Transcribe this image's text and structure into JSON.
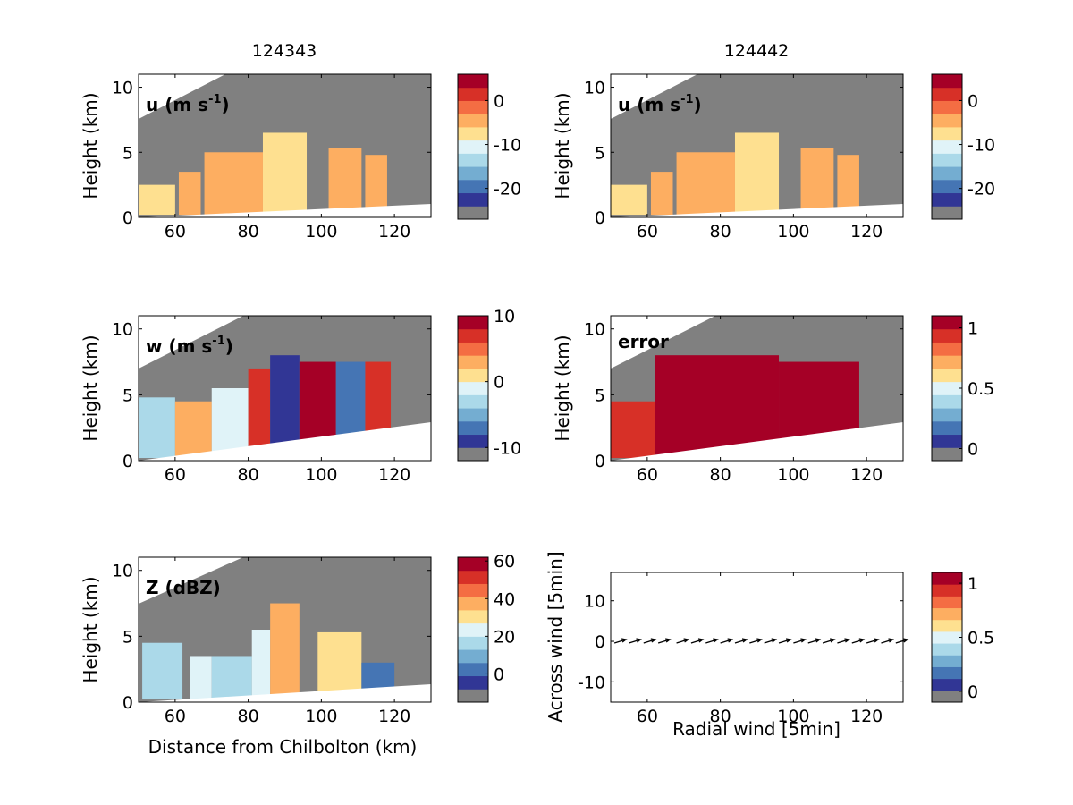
{
  "colors": {
    "mask_gray": "#808080",
    "below_ground": "#ffffff",
    "colormap": [
      "#808080",
      "#313695",
      "#4575b4",
      "#74add1",
      "#abd9e9",
      "#e0f3f8",
      "#fee090",
      "#fdae61",
      "#f46d43",
      "#d73027",
      "#a50026"
    ]
  },
  "column_titles": [
    "124343",
    "124442"
  ],
  "chart_data": [
    {
      "type": "heatmap",
      "panel": "u-left",
      "label_main": "u (m s",
      "label_sup": "-1",
      "label_close": ")",
      "ylabel": "Height (km)",
      "xlabel": "",
      "xlim": [
        50,
        130
      ],
      "ylim": [
        0,
        11
      ],
      "xticks": [
        "60",
        "80",
        "100",
        "120"
      ],
      "yticks": [
        "0",
        "5",
        "10"
      ],
      "colorbar": {
        "range": [
          -27,
          6
        ],
        "ticks": [
          "0",
          "-10",
          "-20"
        ],
        "tick_values": [
          0,
          -10,
          -20
        ]
      },
      "echo_regions": [
        {
          "x": [
            50,
            60
          ],
          "ytop": 2.5,
          "value": -8
        },
        {
          "x": [
            61,
            67
          ],
          "ytop": 3.5,
          "value": -5
        },
        {
          "x": [
            68,
            84
          ],
          "ytop": 5.0,
          "value": -4
        },
        {
          "x": [
            84,
            96
          ],
          "ytop": 6.5,
          "value": -7
        },
        {
          "x": [
            102,
            111
          ],
          "ytop": 5.3,
          "value": -6
        },
        {
          "x": [
            112,
            118
          ],
          "ytop": 4.8,
          "value": -4
        }
      ]
    },
    {
      "type": "heatmap",
      "panel": "u-right",
      "label_main": "u (m s",
      "label_sup": "-1",
      "label_close": ")",
      "ylabel": "Height (km)",
      "xlabel": "",
      "xlim": [
        50,
        130
      ],
      "ylim": [
        0,
        11
      ],
      "xticks": [
        "60",
        "80",
        "100",
        "120"
      ],
      "yticks": [
        "0",
        "5",
        "10"
      ],
      "colorbar": {
        "range": [
          -27,
          6
        ],
        "ticks": [
          "0",
          "-10",
          "-20"
        ],
        "tick_values": [
          0,
          -10,
          -20
        ]
      },
      "echo_regions": [
        {
          "x": [
            50,
            60
          ],
          "ytop": 2.5,
          "value": -8
        },
        {
          "x": [
            61,
            67
          ],
          "ytop": 3.5,
          "value": -5
        },
        {
          "x": [
            68,
            84
          ],
          "ytop": 5.0,
          "value": -4
        },
        {
          "x": [
            84,
            96
          ],
          "ytop": 6.5,
          "value": -7
        },
        {
          "x": [
            102,
            111
          ],
          "ytop": 5.3,
          "value": -6
        },
        {
          "x": [
            112,
            118
          ],
          "ytop": 4.8,
          "value": -4
        }
      ]
    },
    {
      "type": "heatmap",
      "panel": "w-left",
      "label_main": "w (m s",
      "label_sup": "-1",
      "label_close": ")",
      "ylabel": "Height (km)",
      "xlabel": "",
      "xlim": [
        50,
        130
      ],
      "ylim": [
        0,
        11
      ],
      "xticks": [
        "60",
        "80",
        "100",
        "120"
      ],
      "yticks": [
        "0",
        "5",
        "10"
      ],
      "colorbar": {
        "range": [
          -12,
          10
        ],
        "ticks": [
          "10",
          "0",
          "-10"
        ],
        "tick_values": [
          10,
          0,
          -10
        ]
      },
      "echo_regions": [
        {
          "x": [
            50,
            60
          ],
          "ytop": 4.8,
          "value": -3
        },
        {
          "x": [
            60,
            70
          ],
          "ytop": 4.5,
          "value": 2
        },
        {
          "x": [
            70,
            80
          ],
          "ytop": 5.5,
          "value": -2
        },
        {
          "x": [
            80,
            86
          ],
          "ytop": 7.0,
          "value": 6
        },
        {
          "x": [
            86,
            94
          ],
          "ytop": 8.0,
          "value": -9
        },
        {
          "x": [
            94,
            104
          ],
          "ytop": 7.5,
          "value": 8
        },
        {
          "x": [
            104,
            112
          ],
          "ytop": 7.5,
          "value": -8
        },
        {
          "x": [
            112,
            119
          ],
          "ytop": 7.5,
          "value": 7
        }
      ]
    },
    {
      "type": "heatmap",
      "panel": "error-right",
      "label_main": "error",
      "label_sup": "",
      "label_close": "",
      "ylabel": "Height (km)",
      "xlabel": "",
      "xlim": [
        50,
        130
      ],
      "ylim": [
        0,
        11
      ],
      "xticks": [
        "60",
        "80",
        "100",
        "120"
      ],
      "yticks": [
        "0",
        "5",
        "10"
      ],
      "colorbar": {
        "range": [
          -0.1,
          1.1
        ],
        "ticks": [
          "1",
          "0.5",
          "0"
        ],
        "tick_values": [
          1,
          0.5,
          0
        ]
      },
      "echo_regions": [
        {
          "x": [
            50,
            62
          ],
          "ytop": 4.5,
          "value": 0.95
        },
        {
          "x": [
            62,
            96
          ],
          "ytop": 8.0,
          "value": 1.0
        },
        {
          "x": [
            96,
            118
          ],
          "ytop": 7.5,
          "value": 1.0
        }
      ]
    },
    {
      "type": "heatmap",
      "panel": "Z-left",
      "label_main": "Z (dBZ)",
      "label_sup": "",
      "label_close": "",
      "ylabel": "Height (km)",
      "xlabel": "Distance from Chilbolton (km)",
      "xlim": [
        50,
        130
      ],
      "ylim": [
        0,
        11
      ],
      "xticks": [
        "60",
        "80",
        "100",
        "120"
      ],
      "yticks": [
        "0",
        "5",
        "10"
      ],
      "colorbar": {
        "range": [
          -15,
          62
        ],
        "ticks": [
          "60",
          "40",
          "20",
          "0"
        ],
        "tick_values": [
          60,
          40,
          20,
          0
        ]
      },
      "echo_regions": [
        {
          "x": [
            51,
            62
          ],
          "ytop": 4.5,
          "value": 18
        },
        {
          "x": [
            64,
            70
          ],
          "ytop": 3.5,
          "value": 20
        },
        {
          "x": [
            70,
            81
          ],
          "ytop": 3.5,
          "value": 18
        },
        {
          "x": [
            81,
            86
          ],
          "ytop": 5.5,
          "value": 25
        },
        {
          "x": [
            86,
            94
          ],
          "ytop": 7.5,
          "value": 40
        },
        {
          "x": [
            99,
            111
          ],
          "ytop": 5.3,
          "value": 30
        },
        {
          "x": [
            111,
            120
          ],
          "ytop": 3.0,
          "value": 5
        }
      ]
    },
    {
      "type": "scatter",
      "panel": "wind-right",
      "xlabel": "Radial wind [5min]",
      "ylabel": "Across wind [5min]",
      "xlim": [
        50,
        130
      ],
      "ylim": [
        -15,
        17
      ],
      "xticks": [
        "60",
        "80",
        "100",
        "120"
      ],
      "yticks": [
        "-10",
        "0",
        "10"
      ],
      "colorbar": {
        "range": [
          -0.1,
          1.1
        ],
        "ticks": [
          "1",
          "0.5",
          "0"
        ],
        "tick_values": [
          1,
          0.5,
          0
        ]
      },
      "arrows": {
        "x": [
          51,
          55,
          59,
          63,
          68,
          72,
          76,
          80,
          84,
          88,
          92,
          96,
          100,
          104,
          108,
          112,
          116,
          120,
          124,
          128
        ],
        "y": 0
      }
    }
  ]
}
